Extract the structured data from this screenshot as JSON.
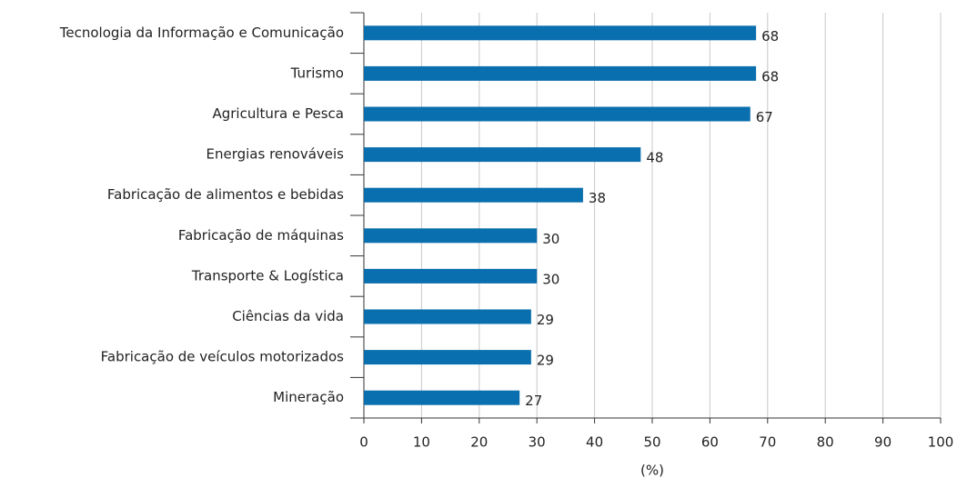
{
  "chart_data": {
    "type": "barh",
    "categories": [
      "Tecnologia da Informação e Comunicação",
      "Turismo",
      "Agricultura e Pesca",
      "Energias renováveis",
      "Fabricação de alimentos e bebidas",
      "Fabricação de máquinas",
      "Transporte & Logística",
      "Ciências da vida",
      "Fabricação de veículos motorizados",
      "Mineração"
    ],
    "values": [
      68,
      68,
      67,
      48,
      38,
      30,
      30,
      29,
      29,
      27
    ],
    "color": "#0a6fae",
    "xlabel": "(%)",
    "xlim": [
      0,
      100
    ],
    "xticks": [
      0,
      10,
      20,
      30,
      40,
      50,
      60,
      70,
      80,
      90,
      100
    ],
    "grid": true
  }
}
